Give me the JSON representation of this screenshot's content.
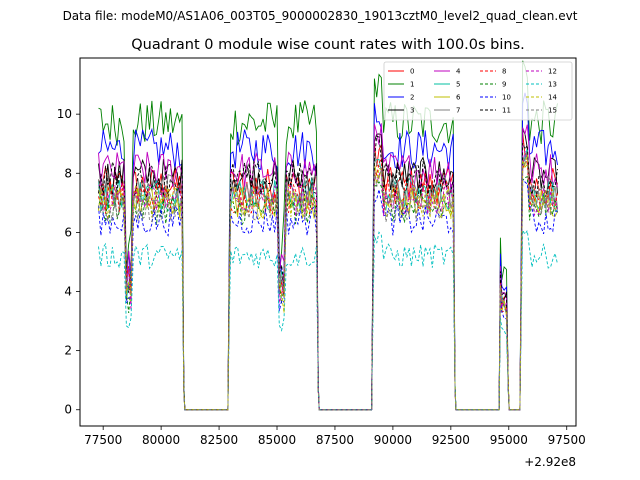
{
  "chart_data": {
    "type": "line",
    "suptitle": "Data file: modeM0/AS1A06_003T05_9000002830_19013cztM0_level2_quad_clean.evt",
    "title": "Quadrant 0 module wise count rates with 100.0s bins.",
    "xlabel": "",
    "ylabel": "",
    "x_offset_label": "+2.92e8",
    "xlim": [
      76500,
      97900
    ],
    "ylim": [
      -0.55,
      11.9
    ],
    "x_ticks": [
      77500,
      80000,
      82500,
      85000,
      87500,
      90000,
      92500,
      95000,
      97500
    ],
    "x_tick_labels": [
      "77500",
      "80000",
      "82500",
      "85000",
      "87500",
      "90000",
      "92500",
      "95000",
      "97500"
    ],
    "y_ticks": [
      0,
      2,
      4,
      6,
      8,
      10
    ],
    "y_tick_labels": [
      "0",
      "2",
      "4",
      "6",
      "8",
      "10"
    ],
    "legend_position": "upper right",
    "legend_columns": 4,
    "bin_seconds": 100,
    "segments": [
      {
        "start": 77300,
        "end": 80900,
        "dip_at": 78600
      },
      {
        "start": 83000,
        "end": 86700,
        "dip_at": 85200
      },
      {
        "start": 89200,
        "end": 92600,
        "dip_at": null
      },
      {
        "start": 94700,
        "end": 94900,
        "dip_at": null
      },
      {
        "start": 95600,
        "end": 97100,
        "dip_at": null
      }
    ],
    "zero_runs": [
      [
        80900,
        83000
      ],
      [
        86700,
        89200
      ],
      [
        92600,
        94700
      ],
      [
        94900,
        95600
      ]
    ],
    "series": [
      {
        "name": "0",
        "color": "#ff0000",
        "dash": "solid",
        "level": 7.6
      },
      {
        "name": "1",
        "color": "#008000",
        "dash": "solid",
        "level": 9.7
      },
      {
        "name": "2",
        "color": "#0000ff",
        "dash": "solid",
        "level": 8.8
      },
      {
        "name": "3",
        "color": "#000000",
        "dash": "solid",
        "level": 7.9
      },
      {
        "name": "4",
        "color": "#bf00bf",
        "dash": "solid",
        "level": 8.1
      },
      {
        "name": "5",
        "color": "#00bfa0",
        "dash": "solid",
        "level": 7.3
      },
      {
        "name": "6",
        "color": "#bfbf00",
        "dash": "solid",
        "level": 7.0
      },
      {
        "name": "7",
        "color": "#808080",
        "dash": "solid",
        "level": 7.4
      },
      {
        "name": "8",
        "color": "#ff0000",
        "dash": "dashed",
        "level": 7.2
      },
      {
        "name": "9",
        "color": "#008000",
        "dash": "dashed",
        "level": 6.8
      },
      {
        "name": "10",
        "color": "#0000ff",
        "dash": "dashed",
        "level": 6.4
      },
      {
        "name": "11",
        "color": "#000000",
        "dash": "dashed",
        "level": 7.8
      },
      {
        "name": "12",
        "color": "#bf00bf",
        "dash": "dashed",
        "level": 7.1
      },
      {
        "name": "13",
        "color": "#00bfbf",
        "dash": "dashed",
        "level": 5.2
      },
      {
        "name": "14",
        "color": "#bfbf00",
        "dash": "dashed",
        "level": 7.0
      },
      {
        "name": "15",
        "color": "#808080",
        "dash": "dashed",
        "level": 6.9
      }
    ]
  }
}
